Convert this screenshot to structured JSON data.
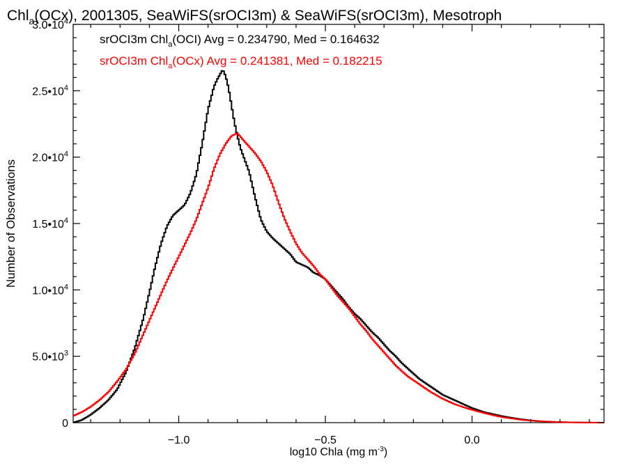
{
  "chart_data": {
    "type": "line",
    "title": {
      "prefix": "Chl",
      "sub": "a",
      "rest": "(OCx), 2001305, SeaWiFS(srOCI3m) & SeaWiFS(srOCI3m), Mesotroph"
    },
    "xlabel": {
      "prefix": "log10 Chla (mg m",
      "sup": "-3",
      "suffix": ")"
    },
    "ylabel": "Number of Observations",
    "xlim": [
      -1.36,
      0.45
    ],
    "ylim": [
      0,
      30000
    ],
    "x_ticks": [
      {
        "value": -1.0,
        "label": "−1.0"
      },
      {
        "value": -0.5,
        "label": "−0.5"
      },
      {
        "value": 0.0,
        "label": "0.0"
      }
    ],
    "y_ticks": [
      {
        "value": 0,
        "mant": "0",
        "exp": ""
      },
      {
        "value": 5000,
        "mant": "5.0•10",
        "exp": "3"
      },
      {
        "value": 10000,
        "mant": "1.0•10",
        "exp": "4"
      },
      {
        "value": 15000,
        "mant": "1.5•10",
        "exp": "4"
      },
      {
        "value": 20000,
        "mant": "2.0•10",
        "exp": "4"
      },
      {
        "value": 25000,
        "mant": "2.5•10",
        "exp": "4"
      },
      {
        "value": 30000,
        "mant": "3.0•10",
        "exp": "4"
      }
    ],
    "grid": false,
    "series": [
      {
        "name": "OCI",
        "color": "#000000",
        "legend": {
          "a": "srOCI3m Chl",
          "sub": "a",
          "b": "(OCI) Avg = 0.234790, Med = 0.164632"
        },
        "x": [
          -1.36,
          -1.33,
          -1.3,
          -1.27,
          -1.24,
          -1.21,
          -1.18,
          -1.15,
          -1.12,
          -1.1,
          -1.08,
          -1.06,
          -1.04,
          -1.02,
          -1.0,
          -0.98,
          -0.96,
          -0.94,
          -0.92,
          -0.9,
          -0.88,
          -0.87,
          -0.86,
          -0.85,
          -0.84,
          -0.83,
          -0.82,
          -0.81,
          -0.8,
          -0.79,
          -0.78,
          -0.76,
          -0.74,
          -0.72,
          -0.7,
          -0.68,
          -0.66,
          -0.64,
          -0.62,
          -0.6,
          -0.58,
          -0.56,
          -0.54,
          -0.52,
          -0.5,
          -0.48,
          -0.46,
          -0.44,
          -0.42,
          -0.4,
          -0.38,
          -0.36,
          -0.34,
          -0.32,
          -0.3,
          -0.28,
          -0.26,
          -0.24,
          -0.22,
          -0.2,
          -0.18,
          -0.16,
          -0.14,
          -0.12,
          -0.1,
          -0.08,
          -0.06,
          -0.04,
          -0.02,
          0.0,
          0.02,
          0.04,
          0.06,
          0.08,
          0.1,
          0.12,
          0.14,
          0.16,
          0.18,
          0.2,
          0.22,
          0.24,
          0.26,
          0.28,
          0.3,
          0.32,
          0.34,
          0.36,
          0.38,
          0.4,
          0.42,
          0.45
        ],
        "y": [
          0,
          200,
          600,
          1100,
          1700,
          2500,
          3800,
          5600,
          7900,
          9800,
          11800,
          13500,
          14800,
          15600,
          16000,
          16400,
          17300,
          18700,
          21000,
          23600,
          25300,
          25800,
          26200,
          26600,
          26100,
          25200,
          23900,
          22600,
          21600,
          20700,
          20100,
          18900,
          17000,
          15300,
          14400,
          13900,
          13500,
          13100,
          12700,
          12100,
          11900,
          11700,
          11300,
          11100,
          10800,
          10300,
          9800,
          9300,
          8700,
          8200,
          7800,
          7300,
          6800,
          6400,
          5900,
          5400,
          5000,
          4500,
          4100,
          3700,
          3300,
          3000,
          2700,
          2400,
          2100,
          1900,
          1700,
          1500,
          1300,
          1100,
          950,
          800,
          700,
          600,
          500,
          420,
          350,
          280,
          220,
          170,
          130,
          100,
          80,
          60,
          45,
          35,
          25,
          20,
          15,
          10,
          5,
          2
        ]
      },
      {
        "name": "OCx",
        "color": "#ff0000",
        "legend": {
          "a": "srOCI3m Chl",
          "sub": "a",
          "b": "(OCx) Avg = 0.241381, Med = 0.182215"
        },
        "x": [
          -1.36,
          -1.33,
          -1.3,
          -1.27,
          -1.24,
          -1.21,
          -1.18,
          -1.15,
          -1.12,
          -1.1,
          -1.08,
          -1.06,
          -1.04,
          -1.02,
          -1.0,
          -0.98,
          -0.96,
          -0.94,
          -0.92,
          -0.9,
          -0.88,
          -0.86,
          -0.84,
          -0.82,
          -0.8,
          -0.78,
          -0.76,
          -0.74,
          -0.72,
          -0.7,
          -0.68,
          -0.66,
          -0.64,
          -0.62,
          -0.6,
          -0.58,
          -0.56,
          -0.54,
          -0.52,
          -0.5,
          -0.48,
          -0.46,
          -0.44,
          -0.42,
          -0.4,
          -0.38,
          -0.36,
          -0.34,
          -0.32,
          -0.3,
          -0.28,
          -0.26,
          -0.24,
          -0.22,
          -0.2,
          -0.18,
          -0.16,
          -0.14,
          -0.12,
          -0.1,
          -0.08,
          -0.06,
          -0.04,
          -0.02,
          0.0,
          0.02,
          0.04,
          0.06,
          0.08,
          0.1,
          0.12,
          0.14,
          0.16,
          0.18,
          0.2,
          0.22,
          0.24,
          0.26,
          0.28,
          0.3,
          0.32,
          0.34,
          0.36,
          0.38,
          0.4,
          0.42,
          0.45
        ],
        "y": [
          500,
          800,
          1200,
          1700,
          2300,
          3100,
          4000,
          5200,
          6700,
          7700,
          8700,
          9700,
          10700,
          11600,
          12500,
          13400,
          14300,
          15300,
          16500,
          17700,
          19100,
          20200,
          21000,
          21600,
          21800,
          21300,
          20800,
          20300,
          19700,
          18900,
          17900,
          16600,
          15400,
          14400,
          13500,
          12800,
          12300,
          11800,
          11200,
          10800,
          10200,
          9600,
          9100,
          8600,
          8000,
          7400,
          6900,
          6300,
          5800,
          5300,
          4800,
          4300,
          3900,
          3500,
          3200,
          2900,
          2600,
          2300,
          2050,
          1800,
          1600,
          1400,
          1250,
          1100,
          970,
          850,
          730,
          620,
          520,
          430,
          360,
          300,
          240,
          190,
          150,
          115,
          90,
          70,
          52,
          38,
          28,
          20,
          14,
          10,
          6,
          3,
          2
        ]
      }
    ]
  }
}
